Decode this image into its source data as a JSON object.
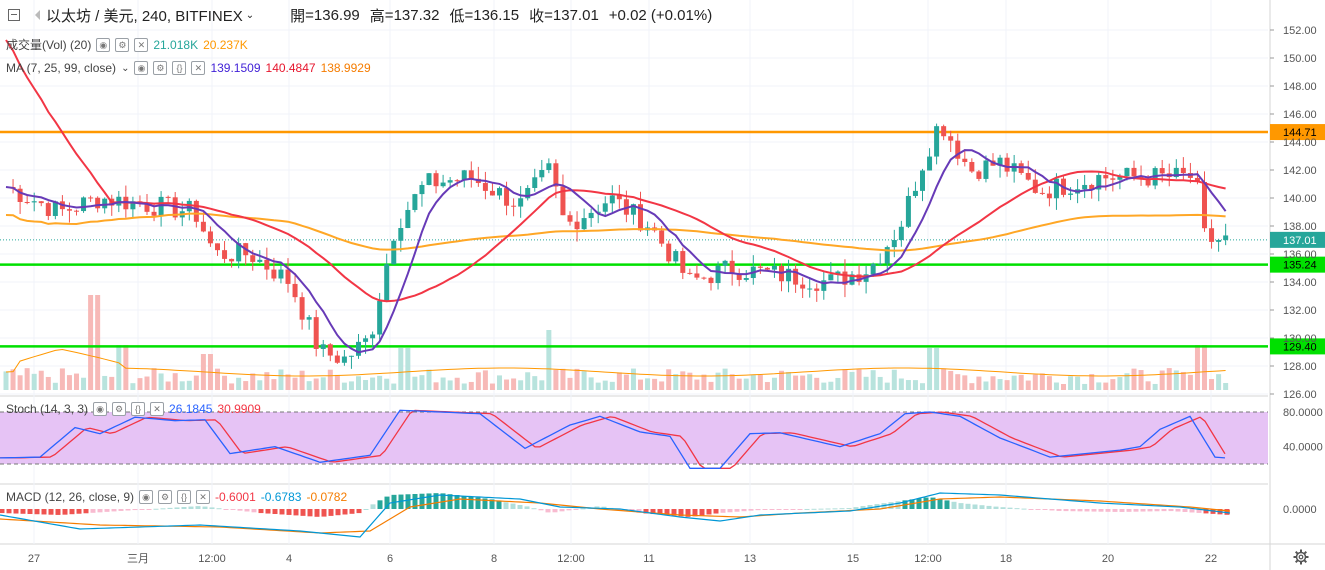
{
  "header": {
    "collapse_icon": "minus-square-icon",
    "symbol": "以太坊 / 美元, 240, BITFINEX",
    "open_label": "開",
    "open": "136.99",
    "high_label": "高",
    "high": "137.32",
    "low_label": "低",
    "low": "136.15",
    "close_label": "收",
    "close": "137.01",
    "change": "+0.02 (+0.01%)"
  },
  "legends": {
    "vol": {
      "name": "成交量(Vol) (20)",
      "v1": "21.018K",
      "v2": "20.237K"
    },
    "ma": {
      "name": "MA (7, 25, 99, close)",
      "v1": "139.1509",
      "v2": "140.4847",
      "v3": "138.9929"
    },
    "stoch": {
      "name": "Stoch (14, 3, 3)",
      "v1": "26.1845",
      "v2": "30.9909"
    },
    "macd": {
      "name": "MACD (12, 26, close, 9)",
      "v1": "-0.6001",
      "v2": "-0.6783",
      "v3": "-0.0782"
    }
  },
  "price_axis": [
    "152.00",
    "150.00",
    "148.00",
    "146.00",
    "144.00",
    "142.00",
    "140.00",
    "138.00",
    "136.00",
    "134.00",
    "132.00",
    "130.00",
    "128.00",
    "126.00"
  ],
  "horizontal_lines": [
    {
      "price": 144.71,
      "label": "144.71",
      "color": "#ff9800"
    },
    {
      "price": 135.24,
      "label": "135.24",
      "color": "#00e000"
    },
    {
      "price": 129.4,
      "label": "129.40",
      "color": "#00e000"
    }
  ],
  "last_price": {
    "value": 137.01,
    "label": "137.01",
    "color": "#26a69a"
  },
  "stoch_axis": [
    "80.0000",
    "40.0000"
  ],
  "macd_axis": [
    "0.0000"
  ],
  "time_axis": [
    "27",
    "三月",
    "12:00",
    "4",
    "6",
    "8",
    "12:00",
    "11",
    "13",
    "15",
    "12:00",
    "18",
    "20",
    "22"
  ],
  "colors": {
    "up": "#26a69a",
    "down": "#ef5350",
    "ma7": "#673ab7",
    "ma25": "#f23645",
    "ma99": "#ffa726"
  },
  "settings_icon": "gear-icon"
}
